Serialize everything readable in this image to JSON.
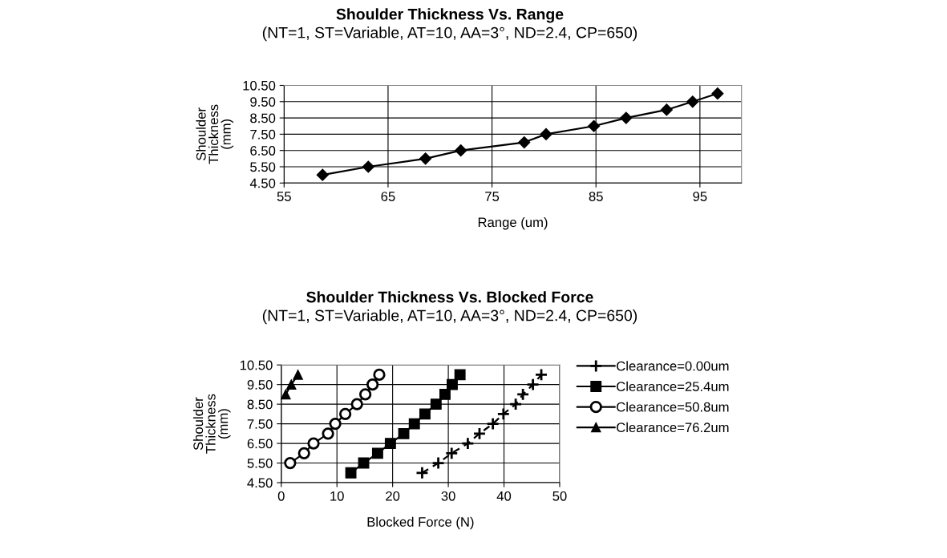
{
  "chart_data": [
    {
      "type": "line",
      "title": "Shoulder Thickness Vs. Range",
      "subtitle": "(NT=1, ST=Variable, AT=10, AA=3°, ND=2.4, CP=650)",
      "xlabel": "Range (um)",
      "ylabel": "Shoulder\nThickness\n(mm)",
      "xlim": [
        55,
        99
      ],
      "xticks": [
        55,
        65,
        75,
        85,
        95
      ],
      "ylim": [
        4.5,
        10.5
      ],
      "yticks": [
        {
          "value": 4.5,
          "label": "4.50"
        },
        {
          "value": 5.5,
          "label": "5.50"
        },
        {
          "value": 6.5,
          "label": "6.50"
        },
        {
          "value": 7.5,
          "label": "7.50"
        },
        {
          "value": 8.5,
          "label": "8.50"
        },
        {
          "value": 9.5,
          "label": "9.50"
        },
        {
          "value": 10.5,
          "label": "10.50"
        }
      ],
      "grid": true,
      "legend": false,
      "series": [
        {
          "color": "#000000",
          "marker": "diamond",
          "line_style": "solid",
          "x": [
            58.7,
            63.1,
            68.6,
            72.0,
            78.1,
            80.2,
            84.8,
            87.9,
            91.8,
            94.3,
            96.7
          ],
          "values": [
            5.0,
            5.5,
            6.0,
            6.5,
            7.0,
            7.5,
            8.0,
            8.5,
            9.0,
            9.5,
            10.0
          ]
        }
      ]
    },
    {
      "type": "line",
      "title": "Shoulder Thickness Vs. Blocked Force",
      "subtitle": "(NT=1, ST=Variable, AT=10, AA=3°, ND=2.4, CP=650)",
      "xlabel": "Blocked Force (N)",
      "ylabel": "Shoulder\nThickness\n(mm)",
      "xlim": [
        0,
        50
      ],
      "xticks": [
        0,
        10,
        20,
        30,
        40,
        50
      ],
      "ylim": [
        4.5,
        10.5
      ],
      "yticks": [
        {
          "value": 4.5,
          "label": "4.50"
        },
        {
          "value": 5.5,
          "label": "5.50"
        },
        {
          "value": 6.5,
          "label": "6.50"
        },
        {
          "value": 7.5,
          "label": "7.50"
        },
        {
          "value": 8.5,
          "label": "8.50"
        },
        {
          "value": 9.5,
          "label": "9.50"
        },
        {
          "value": 10.5,
          "label": "10.50"
        }
      ],
      "grid": true,
      "legend": "right",
      "series": [
        {
          "name": "Clearance=0.00um",
          "color": "#000000",
          "marker": "cross",
          "line_style": "dashed",
          "x": [
            25.3,
            28.2,
            30.6,
            33.5,
            35.6,
            38.0,
            39.9,
            42.1,
            43.4,
            45.2,
            46.7
          ],
          "values": [
            5.0,
            5.5,
            6.0,
            6.5,
            7.0,
            7.5,
            8.0,
            8.5,
            9.0,
            9.5,
            10.0
          ]
        },
        {
          "name": "Clearance=25.4um",
          "color": "#000000",
          "marker": "square",
          "line_style": "solid",
          "x": [
            12.5,
            14.8,
            17.3,
            19.6,
            22.0,
            23.9,
            25.8,
            27.8,
            29.4,
            30.7,
            32.1
          ],
          "values": [
            5.0,
            5.5,
            6.0,
            6.5,
            7.0,
            7.5,
            8.0,
            8.5,
            9.0,
            9.5,
            10.0
          ]
        },
        {
          "name": "Clearance=50.8um",
          "color": "#000000",
          "marker": "circle",
          "line_style": "solid",
          "x": [
            1.6,
            4.1,
            5.8,
            8.4,
            9.7,
            11.5,
            13.6,
            15.1,
            16.4,
            17.6
          ],
          "values": [
            5.5,
            6.0,
            6.5,
            7.0,
            7.5,
            8.0,
            8.5,
            9.0,
            9.5,
            10.0
          ]
        },
        {
          "name": "Clearance=76.2um",
          "color": "#000000",
          "marker": "triangle",
          "line_style": "solid",
          "x": [
            0.8,
            1.8,
            3.0
          ],
          "values": [
            9.0,
            9.5,
            10.0
          ]
        }
      ]
    }
  ]
}
